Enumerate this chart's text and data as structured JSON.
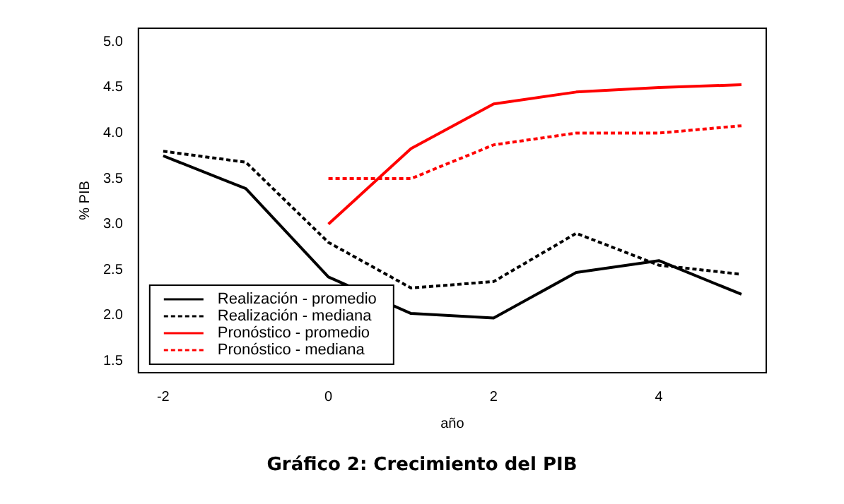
{
  "chart_data": {
    "type": "line",
    "title": "Gráfico 2: Crecimiento del PIB",
    "xlabel": "año",
    "ylabel": "% PIB",
    "x": [
      -2,
      -1,
      0,
      1,
      2,
      3,
      4,
      5
    ],
    "xlim": [
      -2.3,
      5.3
    ],
    "xticks": [
      -2,
      0,
      2,
      4
    ],
    "ylim": [
      1.37,
      5.15
    ],
    "yticks": [
      1.5,
      {
        "value": 2,
        "label": "2.0"
      },
      2.5,
      {
        "value": 3,
        "label": "3.0"
      },
      3.5,
      {
        "value": 4,
        "label": "4.0"
      },
      4.5,
      {
        "value": 5,
        "label": "5.0"
      }
    ],
    "legend": "bottom left",
    "grid": false,
    "marker": "none",
    "series": [
      {
        "name": "Realización - promedio",
        "color": "#000000",
        "line_style": "solid",
        "values": [
          3.75,
          3.39,
          2.42,
          2.02,
          1.97,
          2.47,
          2.6,
          2.23
        ]
      },
      {
        "name": "Realización - mediana",
        "color": "#000000",
        "line_style": "dotted",
        "values": [
          3.8,
          3.68,
          2.8,
          2.3,
          2.37,
          2.9,
          2.55,
          2.45
        ]
      },
      {
        "name": "Pronóstico - promedio",
        "color": "#ff0000",
        "line_style": "solid",
        "values": [
          null,
          null,
          3.0,
          3.83,
          4.32,
          4.45,
          4.5,
          4.53
        ]
      },
      {
        "name": "Pronóstico - mediana",
        "color": "#ff0000",
        "line_style": "dotted",
        "values": [
          null,
          null,
          3.5,
          3.5,
          3.87,
          4.0,
          4.0,
          4.08
        ]
      }
    ]
  }
}
